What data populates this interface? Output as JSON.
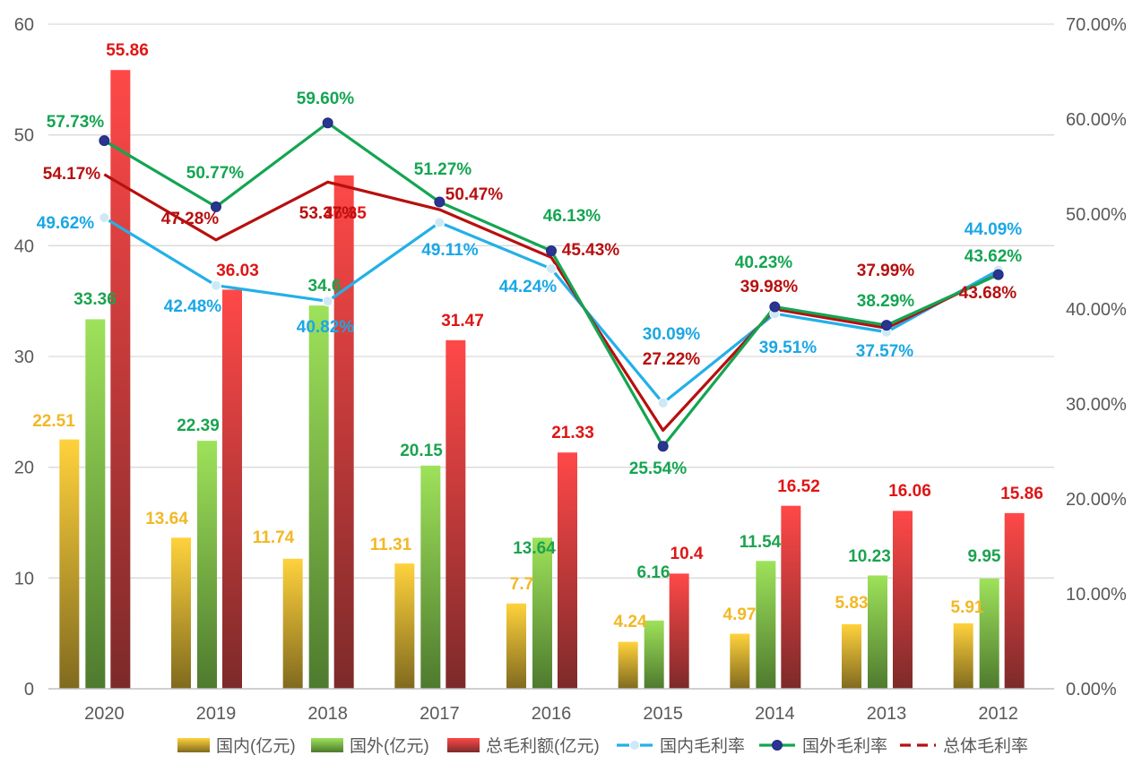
{
  "chart_data": {
    "type": "bar+line",
    "categories": [
      "2020",
      "2019",
      "2018",
      "2017",
      "2016",
      "2015",
      "2014",
      "2013",
      "2012"
    ],
    "y_left": {
      "min": 0,
      "max": 60,
      "ticks": [
        "0",
        "10",
        "20",
        "30",
        "40",
        "50",
        "60"
      ]
    },
    "y_right": {
      "min": 0,
      "max": 70,
      "ticks": [
        "0.00%",
        "10.00%",
        "20.00%",
        "30.00%",
        "40.00%",
        "50.00%",
        "60.00%",
        "70.00%"
      ]
    },
    "bar_series": [
      {
        "name": "国内(亿元)",
        "color_top": "#FFD23C",
        "color_bottom": "#806A1E",
        "label_color": "#F2B824",
        "values": [
          22.51,
          13.64,
          11.74,
          11.31,
          7.7,
          4.24,
          4.97,
          5.83,
          5.91
        ],
        "labels": [
          "22.51",
          "13.64",
          "11.74",
          "11.31",
          "7.7",
          "4.24",
          "4.97",
          "5.83",
          "5.91"
        ]
      },
      {
        "name": "国外(亿元)",
        "color_top": "#9EE25A",
        "color_bottom": "#4E7A2E",
        "label_color": "#1BA34F",
        "values": [
          33.36,
          22.39,
          34.6,
          20.15,
          13.64,
          6.16,
          11.54,
          10.23,
          9.95
        ],
        "labels": [
          "33.36",
          "22.39",
          "34.6",
          "20.15",
          "13.64",
          "6.16",
          "11.54",
          "10.23",
          "9.95"
        ]
      },
      {
        "name": "总毛利额(亿元)",
        "color_top": "#FF4848",
        "color_bottom": "#7D2A2A",
        "label_color": "#E01515",
        "values": [
          55.86,
          36.03,
          46.35,
          31.47,
          21.33,
          10.4,
          16.52,
          16.06,
          15.86
        ],
        "labels": [
          "55.86",
          "36.03",
          "46.35",
          "31.47",
          "21.33",
          "10.4",
          "16.52",
          "16.06",
          "15.86"
        ]
      }
    ],
    "line_series": [
      {
        "name": "国内毛利率",
        "color": "#23B0E8",
        "label_color": "#1AA7E6",
        "dash": false,
        "marker_fill": "#CDE9F5",
        "values": [
          49.62,
          42.48,
          40.82,
          49.11,
          44.24,
          30.09,
          39.51,
          37.57,
          44.09
        ],
        "labels": [
          "49.62%",
          "42.48%",
          "40.82%",
          "49.11%",
          "44.24%",
          "30.09%",
          "39.51%",
          "37.57%",
          "44.09%"
        ]
      },
      {
        "name": "国外毛利率",
        "color": "#14A552",
        "label_color": "#14A552",
        "dash": false,
        "marker_fill": "#2A3590",
        "values": [
          57.73,
          50.77,
          59.6,
          51.27,
          46.13,
          25.54,
          40.23,
          38.29,
          43.62
        ],
        "labels": [
          "57.73%",
          "50.77%",
          "59.60%",
          "51.27%",
          "46.13%",
          "25.54%",
          "40.23%",
          "38.29%",
          "43.62%"
        ]
      },
      {
        "name": "总体毛利率",
        "color": "#B80F0F",
        "label_color": "#B80F0F",
        "dash": true,
        "marker_fill": "",
        "values": [
          54.17,
          47.28,
          53.37,
          50.47,
          45.43,
          27.22,
          39.98,
          37.99,
          43.68
        ],
        "labels": [
          "54.17%",
          "47.28%",
          "53.37%",
          "50.47%",
          "45.43%",
          "27.22%",
          "39.98%",
          "37.99%",
          "43.68%"
        ]
      }
    ],
    "legend": {
      "position": "bottom",
      "items": [
        "国内(亿元)",
        "国外(亿元)",
        "总毛利额(亿元)",
        "国内毛利率",
        "国外毛利率",
        "总体毛利率"
      ]
    }
  }
}
